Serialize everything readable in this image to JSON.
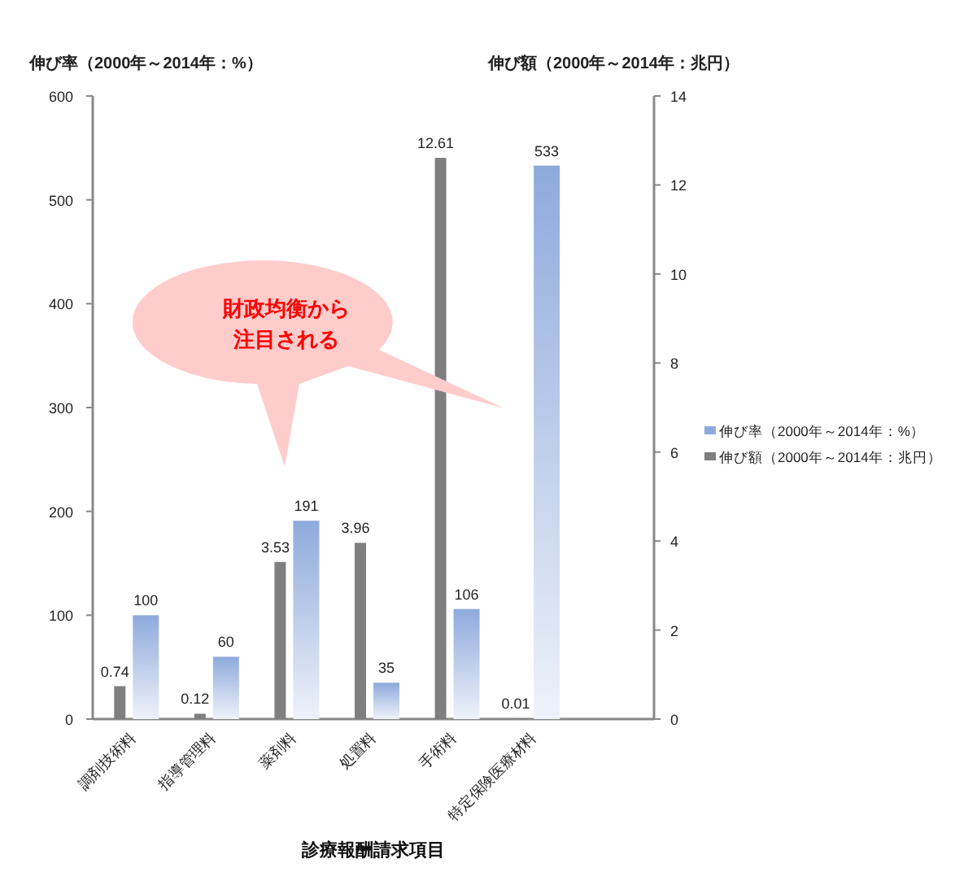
{
  "chart_data": {
    "type": "bar",
    "ylabel": "伸び率（2000年～2014年：%）",
    "y2label": "伸び額（2000年～2014年：兆円）",
    "xlabel": "診療報酬請求項目",
    "categories": [
      "調剤技術料",
      "指導管理料",
      "薬剤料",
      "処置料",
      "手術料",
      "特定保険医療材料",
      null
    ],
    "series": [
      {
        "name": "伸び率（2000年～2014年：%）",
        "color": "#8eaadc",
        "values": [
          100,
          60,
          191,
          35,
          106,
          533,
          null
        ]
      },
      {
        "name": "伸び額（2000年～2014年：兆円）",
        "color": "#7f7f7f",
        "axis": "y2",
        "values": [
          0.74,
          0.12,
          3.53,
          3.96,
          12.61,
          0.01,
          null
        ]
      }
    ],
    "ylim": [
      0,
      600
    ],
    "yticks": [
      0,
      100,
      200,
      300,
      400,
      500,
      600
    ],
    "y2lim": [
      0,
      14
    ],
    "y2ticks": [
      0,
      2,
      4,
      6,
      8,
      10,
      12,
      14
    ],
    "data_labels": true,
    "legend": "right",
    "grid": false,
    "annotations": [
      "財政均衡から注目される"
    ]
  }
}
